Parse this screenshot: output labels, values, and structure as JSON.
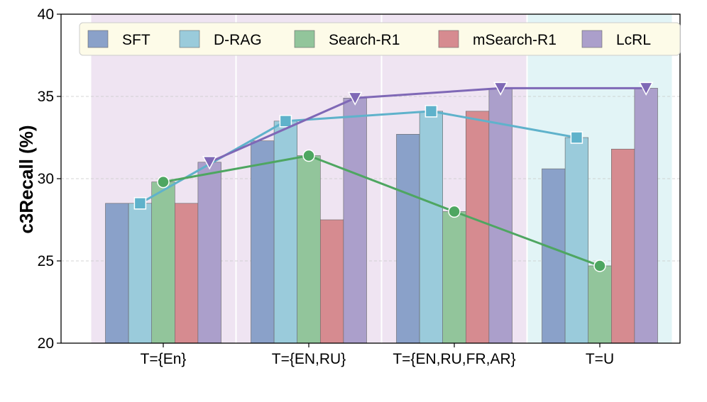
{
  "chart_data": {
    "type": "bar",
    "ylabel": "c3Recall (%)",
    "xlabel": "",
    "ylim": [
      20,
      40
    ],
    "yticks": [
      20,
      25,
      30,
      35,
      40
    ],
    "grid": true,
    "legend_placement": "top",
    "categories": [
      "T={En}",
      "T={EN,RU}",
      "T={EN,RU,FR,AR}",
      "T=U"
    ],
    "group_backgrounds": [
      "#efe4f2",
      "#efe4f2",
      "#efe4f2",
      "#e2f4f6"
    ],
    "series": [
      {
        "name": "SFT",
        "color": "#8aa1c9",
        "values": [
          28.5,
          32.3,
          32.7,
          30.6
        ]
      },
      {
        "name": "D-RAG",
        "color": "#9acbdb",
        "values": [
          28.5,
          33.5,
          34.1,
          32.5
        ]
      },
      {
        "name": "Search-R1",
        "color": "#92c59b",
        "values": [
          29.8,
          31.4,
          28.0,
          24.7
        ]
      },
      {
        "name": "mSearch-R1",
        "color": "#d68b90",
        "values": [
          28.5,
          27.5,
          34.1,
          31.8
        ]
      },
      {
        "name": "LcRL",
        "color": "#ab9fcb",
        "values": [
          31.0,
          34.9,
          35.5,
          35.5
        ]
      }
    ],
    "line_overlays": [
      {
        "series": "D-RAG",
        "line_color": "#5fb2cb",
        "marker": "square",
        "marker_color": "#5fb2cb"
      },
      {
        "series": "Search-R1",
        "line_color": "#4ea661",
        "marker": "circle",
        "marker_color": "#4ea661"
      },
      {
        "series": "LcRL",
        "line_color": "#7f68b6",
        "marker": "triangle-down",
        "marker_color": "#7f68b6"
      }
    ]
  }
}
